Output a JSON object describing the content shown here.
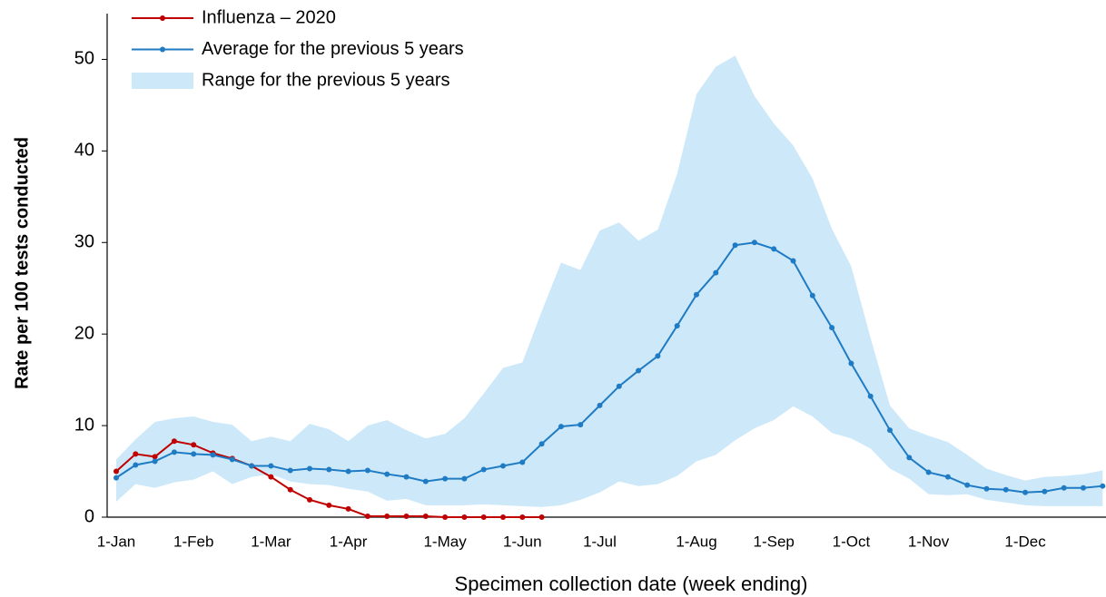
{
  "chart_data": {
    "type": "line",
    "x_label": "Specimen collection date (week ending)",
    "y_label": "Rate per 100 tests conducted",
    "categories": [
      "1-Jan",
      null,
      null,
      null,
      "1-Feb",
      null,
      null,
      null,
      "1-Mar",
      null,
      null,
      null,
      "1-Apr",
      null,
      null,
      null,
      null,
      "1-May",
      null,
      null,
      null,
      "1-Jun",
      null,
      null,
      null,
      "1-Jul",
      null,
      null,
      null,
      null,
      "1-Aug",
      null,
      null,
      null,
      "1-Sep",
      null,
      null,
      null,
      "1-Oct",
      null,
      null,
      null,
      "1-Nov",
      null,
      null,
      null,
      null,
      "1-Dec",
      null,
      null,
      null,
      null
    ],
    "ylim": [
      0,
      55
    ],
    "yticks": [
      0,
      10,
      20,
      30,
      40,
      50
    ],
    "legend": "upper-left",
    "series": [
      {
        "name": "Influenza – 2020",
        "color": "#c00000",
        "kind": "line",
        "values": [
          5.0,
          6.9,
          6.6,
          8.3,
          7.9,
          7.0,
          6.4,
          5.6,
          4.4,
          3.0,
          1.9,
          1.3,
          0.9,
          0.1,
          0.1,
          0.1,
          0.1,
          0,
          0,
          0,
          0,
          0,
          0,
          null,
          null,
          null,
          null,
          null,
          null,
          null,
          null,
          null,
          null,
          null,
          null,
          null,
          null,
          null,
          null,
          null,
          null,
          null,
          null,
          null,
          null,
          null,
          null,
          null,
          null,
          null,
          null,
          null
        ]
      },
      {
        "name": "Average for the previous 5 years",
        "color": "#1f7bc4",
        "kind": "line",
        "values": [
          4.3,
          5.7,
          6.1,
          7.1,
          6.9,
          6.8,
          6.3,
          5.6,
          5.6,
          5.1,
          5.3,
          5.2,
          5.0,
          5.1,
          4.7,
          4.4,
          3.9,
          4.2,
          4.2,
          5.2,
          5.6,
          6.0,
          8.0,
          9.9,
          10.1,
          12.2,
          14.3,
          16.0,
          17.6,
          20.9,
          24.3,
          26.7,
          29.7,
          30.0,
          29.3,
          28.0,
          24.2,
          20.7,
          16.8,
          13.2,
          9.5,
          6.5,
          4.9,
          4.4,
          3.5,
          3.1,
          3.0,
          2.7,
          2.8,
          3.2,
          3.2,
          3.4
        ]
      },
      {
        "name": "Range for the previous 5 years",
        "color": "#cde9f9",
        "kind": "band",
        "upper": [
          6.3,
          8.5,
          10.4,
          10.8,
          11.0,
          10.4,
          10.1,
          8.3,
          8.8,
          8.3,
          10.2,
          9.6,
          8.3,
          10.0,
          10.6,
          9.5,
          8.6,
          9.1,
          10.8,
          13.5,
          16.3,
          16.9,
          22.5,
          27.8,
          27.0,
          31.3,
          32.2,
          30.2,
          31.4,
          37.5,
          46.2,
          49.2,
          50.4,
          46.0,
          43.0,
          40.6,
          37.0,
          31.5,
          27.4,
          19.6,
          12.2,
          9.7,
          8.9,
          8.2,
          6.8,
          5.3,
          4.6,
          4.0,
          4.4,
          4.5,
          4.7,
          5.1
        ],
        "lower": [
          1.7,
          3.6,
          3.2,
          3.8,
          4.1,
          5.0,
          3.6,
          4.4,
          4.7,
          3.9,
          3.6,
          3.5,
          3.1,
          2.8,
          1.8,
          2.0,
          1.3,
          1.3,
          1.3,
          1.4,
          1.3,
          1.2,
          1.1,
          1.3,
          1.9,
          2.7,
          3.9,
          3.4,
          3.6,
          4.5,
          6.1,
          6.8,
          8.4,
          9.7,
          10.6,
          12.1,
          11.0,
          9.2,
          8.6,
          7.5,
          5.3,
          4.2,
          2.5,
          2.4,
          2.5,
          1.9,
          1.6,
          1.3,
          1.2,
          1.2,
          1.2,
          1.2
        ]
      }
    ]
  }
}
